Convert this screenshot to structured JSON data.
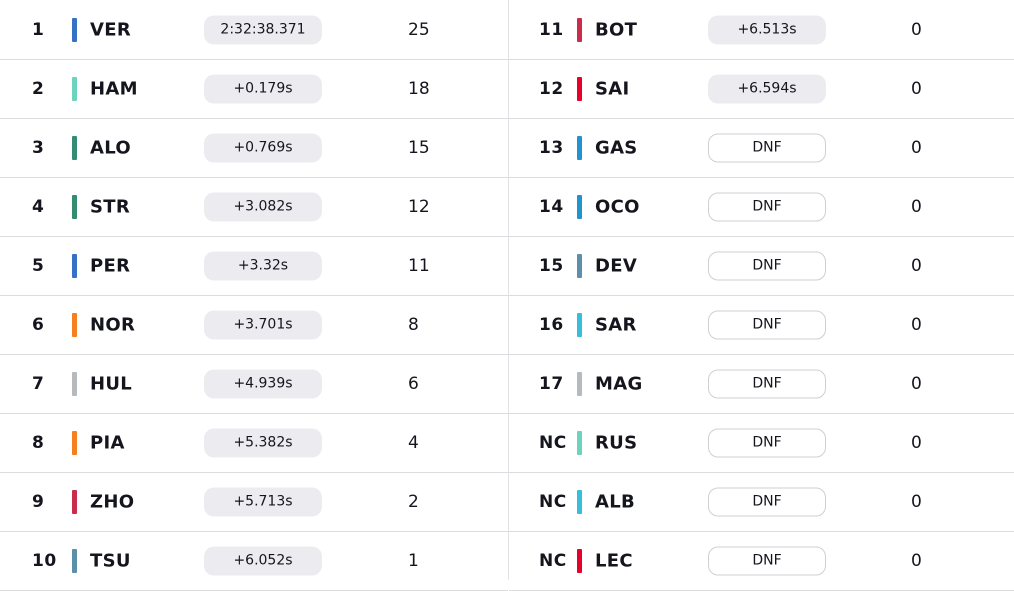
{
  "colors": {
    "divider": "#dcdcdf",
    "pill_bg": "#ececf0",
    "text": "#15151e"
  },
  "results": [
    {
      "pos": "1",
      "code": "VER",
      "time": "2:32:38.371",
      "points": "25",
      "team_color": "#3671C6",
      "dnf": false
    },
    {
      "pos": "2",
      "code": "HAM",
      "time": "+0.179s",
      "points": "18",
      "team_color": "#6CD3BF",
      "dnf": false
    },
    {
      "pos": "3",
      "code": "ALO",
      "time": "+0.769s",
      "points": "15",
      "team_color": "#358C75",
      "dnf": false
    },
    {
      "pos": "4",
      "code": "STR",
      "time": "+3.082s",
      "points": "12",
      "team_color": "#358C75",
      "dnf": false
    },
    {
      "pos": "5",
      "code": "PER",
      "time": "+3.32s",
      "points": "11",
      "team_color": "#3671C6",
      "dnf": false
    },
    {
      "pos": "6",
      "code": "NOR",
      "time": "+3.701s",
      "points": "8",
      "team_color": "#F58020",
      "dnf": false
    },
    {
      "pos": "7",
      "code": "HUL",
      "time": "+4.939s",
      "points": "6",
      "team_color": "#B6BABD",
      "dnf": false
    },
    {
      "pos": "8",
      "code": "PIA",
      "time": "+5.382s",
      "points": "4",
      "team_color": "#F58020",
      "dnf": false
    },
    {
      "pos": "9",
      "code": "ZHO",
      "time": "+5.713s",
      "points": "2",
      "team_color": "#C92D4B",
      "dnf": false
    },
    {
      "pos": "10",
      "code": "TSU",
      "time": "+6.052s",
      "points": "1",
      "team_color": "#5E8FAA",
      "dnf": false
    },
    {
      "pos": "11",
      "code": "BOT",
      "time": "+6.513s",
      "points": "0",
      "team_color": "#C92D4B",
      "dnf": false
    },
    {
      "pos": "12",
      "code": "SAI",
      "time": "+6.594s",
      "points": "0",
      "team_color": "#E8002D",
      "dnf": false
    },
    {
      "pos": "13",
      "code": "GAS",
      "time": "DNF",
      "points": "0",
      "team_color": "#2293D1",
      "dnf": true
    },
    {
      "pos": "14",
      "code": "OCO",
      "time": "DNF",
      "points": "0",
      "team_color": "#2293D1",
      "dnf": true
    },
    {
      "pos": "15",
      "code": "DEV",
      "time": "DNF",
      "points": "0",
      "team_color": "#5E8FAA",
      "dnf": true
    },
    {
      "pos": "16",
      "code": "SAR",
      "time": "DNF",
      "points": "0",
      "team_color": "#37BEDD",
      "dnf": true
    },
    {
      "pos": "17",
      "code": "MAG",
      "time": "DNF",
      "points": "0",
      "team_color": "#B6BABD",
      "dnf": true
    },
    {
      "pos": "NC",
      "code": "RUS",
      "time": "DNF",
      "points": "0",
      "team_color": "#6CD3BF",
      "dnf": true
    },
    {
      "pos": "NC",
      "code": "ALB",
      "time": "DNF",
      "points": "0",
      "team_color": "#37BEDD",
      "dnf": true
    },
    {
      "pos": "NC",
      "code": "LEC",
      "time": "DNF",
      "points": "0",
      "team_color": "#E8002D",
      "dnf": true
    }
  ]
}
